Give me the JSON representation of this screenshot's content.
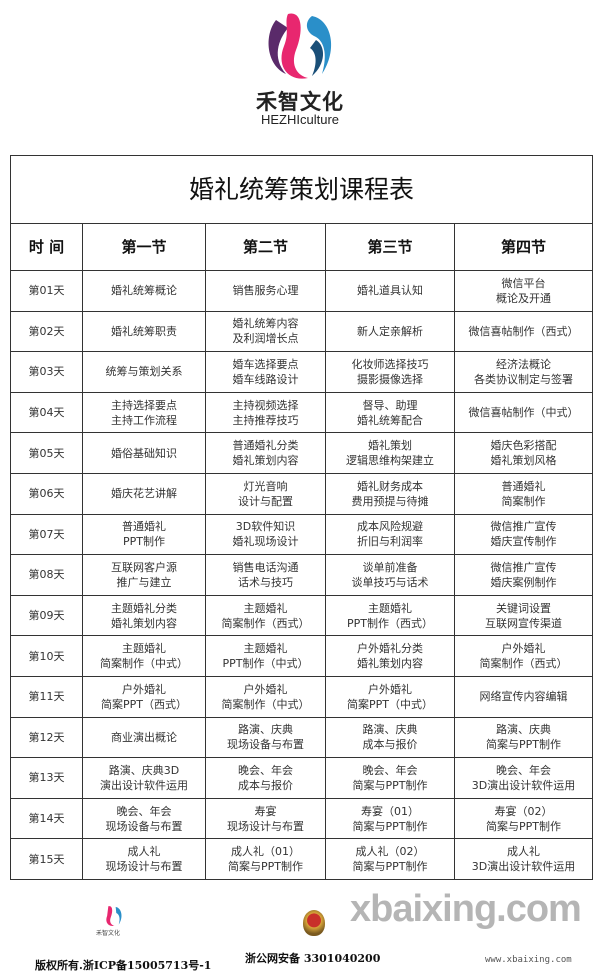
{
  "brand": {
    "name_cn": "禾智文化",
    "name_en": "HEZHIculture"
  },
  "table": {
    "title": "婚礼统筹策划课程表",
    "headers": [
      "时 间",
      "第一节",
      "第二节",
      "第三节",
      "第四节"
    ],
    "rows": [
      [
        "第01天",
        "婚礼统筹概论",
        "销售服务心理",
        "婚礼道具认知",
        "微信平台\n概论及开通"
      ],
      [
        "第02天",
        "婚礼统筹职责",
        "婚礼统筹内容\n及利润增长点",
        "新人定亲解析",
        "微信喜帖制作（西式）"
      ],
      [
        "第03天",
        "统筹与策划关系",
        "婚车选择要点\n婚车线路设计",
        "化妆师选择技巧\n摄影摄像选择",
        "经济法概论\n各类协议制定与签署"
      ],
      [
        "第04天",
        "主持选择要点\n主持工作流程",
        "主持视频选择\n主持推荐技巧",
        "督导、助理\n婚礼统筹配合",
        "微信喜帖制作（中式）"
      ],
      [
        "第05天",
        "婚俗基础知识",
        "普通婚礼分类\n婚礼策划内容",
        "婚礼策划\n逻辑思维构架建立",
        "婚庆色彩搭配\n婚礼策划风格"
      ],
      [
        "第06天",
        "婚庆花艺讲解",
        "灯光音响\n设计与配置",
        "婚礼财务成本\n费用预提与待摊",
        "普通婚礼\n简案制作"
      ],
      [
        "第07天",
        "普通婚礼\nPPT制作",
        "3D软件知识\n婚礼现场设计",
        "成本风险规避\n折旧与利润率",
        "微信推广宣传\n婚庆宣传制作"
      ],
      [
        "第08天",
        "互联网客户源\n推广与建立",
        "销售电话沟通\n话术与技巧",
        "谈单前准备\n谈单技巧与话术",
        "微信推广宣传\n婚庆案例制作"
      ],
      [
        "第09天",
        "主题婚礼分类\n婚礼策划内容",
        "主题婚礼\n简案制作（西式）",
        "主题婚礼\nPPT制作（西式）",
        "关键词设置\n互联网宣传渠道"
      ],
      [
        "第10天",
        "主题婚礼\n简案制作（中式）",
        "主题婚礼\nPPT制作（中式）",
        "户外婚礼分类\n婚礼策划内容",
        "户外婚礼\n简案制作（西式）"
      ],
      [
        "第11天",
        "户外婚礼\n简案PPT（西式）",
        "户外婚礼\n简案制作（中式）",
        "户外婚礼\n简案PPT（中式）",
        "网络宣传内容编辑"
      ],
      [
        "第12天",
        "商业演出概论",
        "路演、庆典\n现场设备与布置",
        "路演、庆典\n成本与报价",
        "路演、庆典\n简案与PPT制作"
      ],
      [
        "第13天",
        "路演、庆典3D\n演出设计软件运用",
        "晚会、年会\n成本与报价",
        "晚会、年会\n简案与PPT制作",
        "晚会、年会\n3D演出设计软件运用"
      ],
      [
        "第14天",
        "晚会、年会\n现场设备与布置",
        "寿宴\n现场设计与布置",
        "寿宴（01）\n简案与PPT制作",
        "寿宴（02）\n简案与PPT制作"
      ],
      [
        "第15天",
        "成人礼\n现场设计与布置",
        "成人礼（01）\n简案与PPT制作",
        "成人礼（02）\n简案与PPT制作",
        "成人礼\n3D演出设计软件运用"
      ]
    ]
  },
  "footer": {
    "copyright": "版权所有.浙ICP备15005713号-1",
    "police": "浙公网安备 3301040200",
    "small_logo_cn": "禾智文化",
    "watermark": "xbaixing.com",
    "watermark_url": "www.xbaixing.com"
  },
  "colors": {
    "logo_pink": "#e8276f",
    "logo_blue": "#2a8fc9",
    "logo_purple": "#5a2a6a"
  }
}
